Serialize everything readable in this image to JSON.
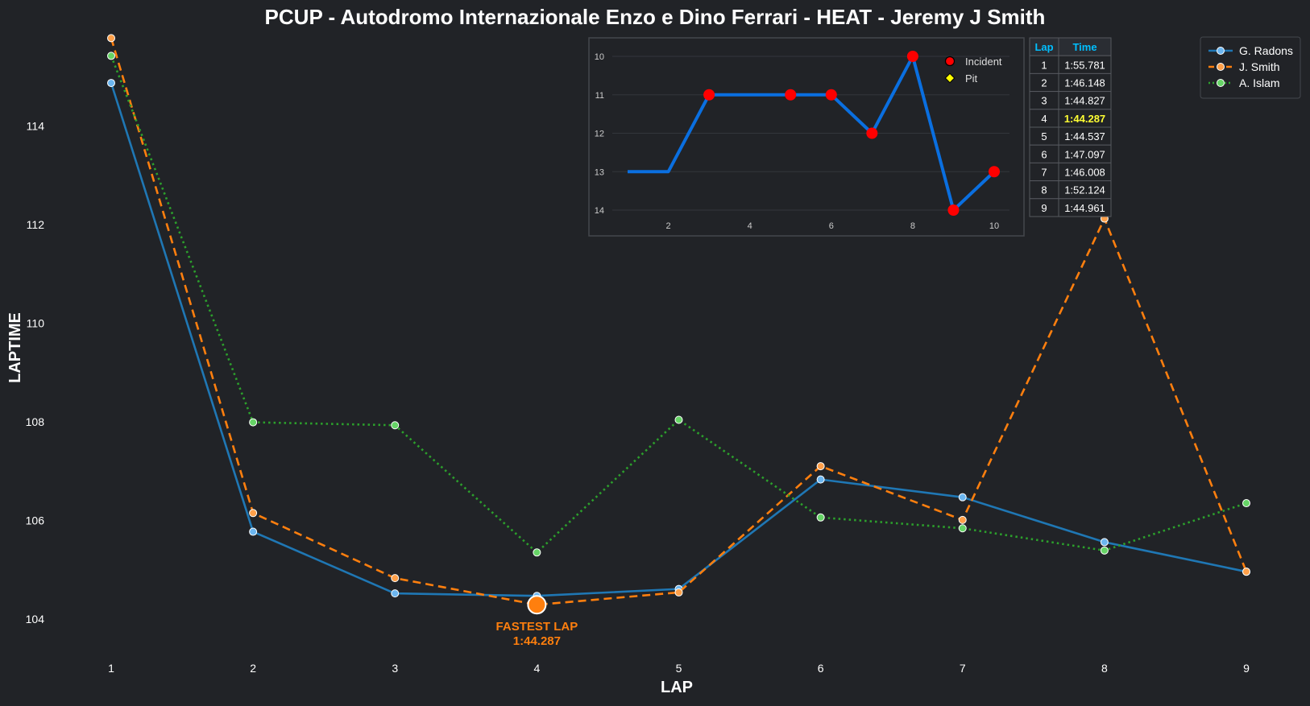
{
  "title": "PCUP - Autodromo Internazionale Enzo e Dino Ferrari - HEAT - Jeremy J Smith",
  "colors": {
    "background": "#212327",
    "text": "#ffffff",
    "radons": "#1f77b4",
    "smith": "#ff7f0e",
    "islam": "#2ca02c",
    "highlight": "#ffff33",
    "table_header": "#00bfff",
    "position_line": "#0a6fe0",
    "incident": "#ff0000",
    "pit": "#ffff00"
  },
  "chart_data": [
    {
      "type": "line",
      "title": "PCUP - Autodromo Internazionale Enzo e Dino Ferrari - HEAT - Jeremy J Smith",
      "xlabel": "LAP",
      "ylabel": "LAPTIME",
      "x": [
        1,
        2,
        3,
        4,
        5,
        6,
        7,
        8,
        9
      ],
      "xticks": [
        "1",
        "2",
        "3",
        "4",
        "5",
        "6",
        "7",
        "8",
        "9"
      ],
      "yticks": [
        "104",
        "106",
        "108",
        "110",
        "112",
        "114"
      ],
      "ylim": [
        103.2,
        115.9
      ],
      "grid": false,
      "legend": "top-right",
      "series": [
        {
          "name": "G. Radons",
          "style": "solid",
          "values": [
            114.87,
            105.77,
            104.52,
            104.47,
            104.61,
            106.83,
            106.47,
            105.56,
            104.96
          ]
        },
        {
          "name": "J. Smith",
          "style": "dashed",
          "values": [
            115.78,
            106.15,
            104.83,
            104.29,
            104.54,
            107.1,
            106.01,
            112.12,
            104.96
          ]
        },
        {
          "name": "A. Islam",
          "style": "dotted",
          "values": [
            115.42,
            107.99,
            107.93,
            105.35,
            108.04,
            106.06,
            105.84,
            105.39,
            106.35
          ]
        }
      ],
      "annotation": {
        "x": 4,
        "y": 104.29,
        "line1": "FASTEST LAP",
        "line2": "1:44.287"
      }
    },
    {
      "type": "line",
      "title": "",
      "xlabel": "",
      "ylabel": "",
      "x": [
        1,
        2,
        3,
        4,
        5,
        6,
        7,
        8,
        9,
        10
      ],
      "values": [
        13,
        13,
        11,
        11,
        11,
        11,
        12,
        10,
        14,
        13
      ],
      "xticks": [
        "2",
        "4",
        "6",
        "8",
        "10"
      ],
      "yticks": [
        "10",
        "11",
        "12",
        "13",
        "14"
      ],
      "y_inverted": true,
      "grid": true,
      "legend": "top-right",
      "legend_entries": [
        "Incident",
        "Pit"
      ],
      "incidents": [
        3,
        5,
        6,
        7,
        8,
        9,
        10
      ],
      "pits": []
    },
    {
      "type": "table",
      "columns": [
        "Lap",
        "Time"
      ],
      "rows": [
        [
          "1",
          "1:55.781"
        ],
        [
          "2",
          "1:46.148"
        ],
        [
          "3",
          "1:44.827"
        ],
        [
          "4",
          "1:44.287"
        ],
        [
          "5",
          "1:44.537"
        ],
        [
          "6",
          "1:47.097"
        ],
        [
          "7",
          "1:46.008"
        ],
        [
          "8",
          "1:52.124"
        ],
        [
          "9",
          "1:44.961"
        ]
      ],
      "highlight_row": 3
    }
  ]
}
